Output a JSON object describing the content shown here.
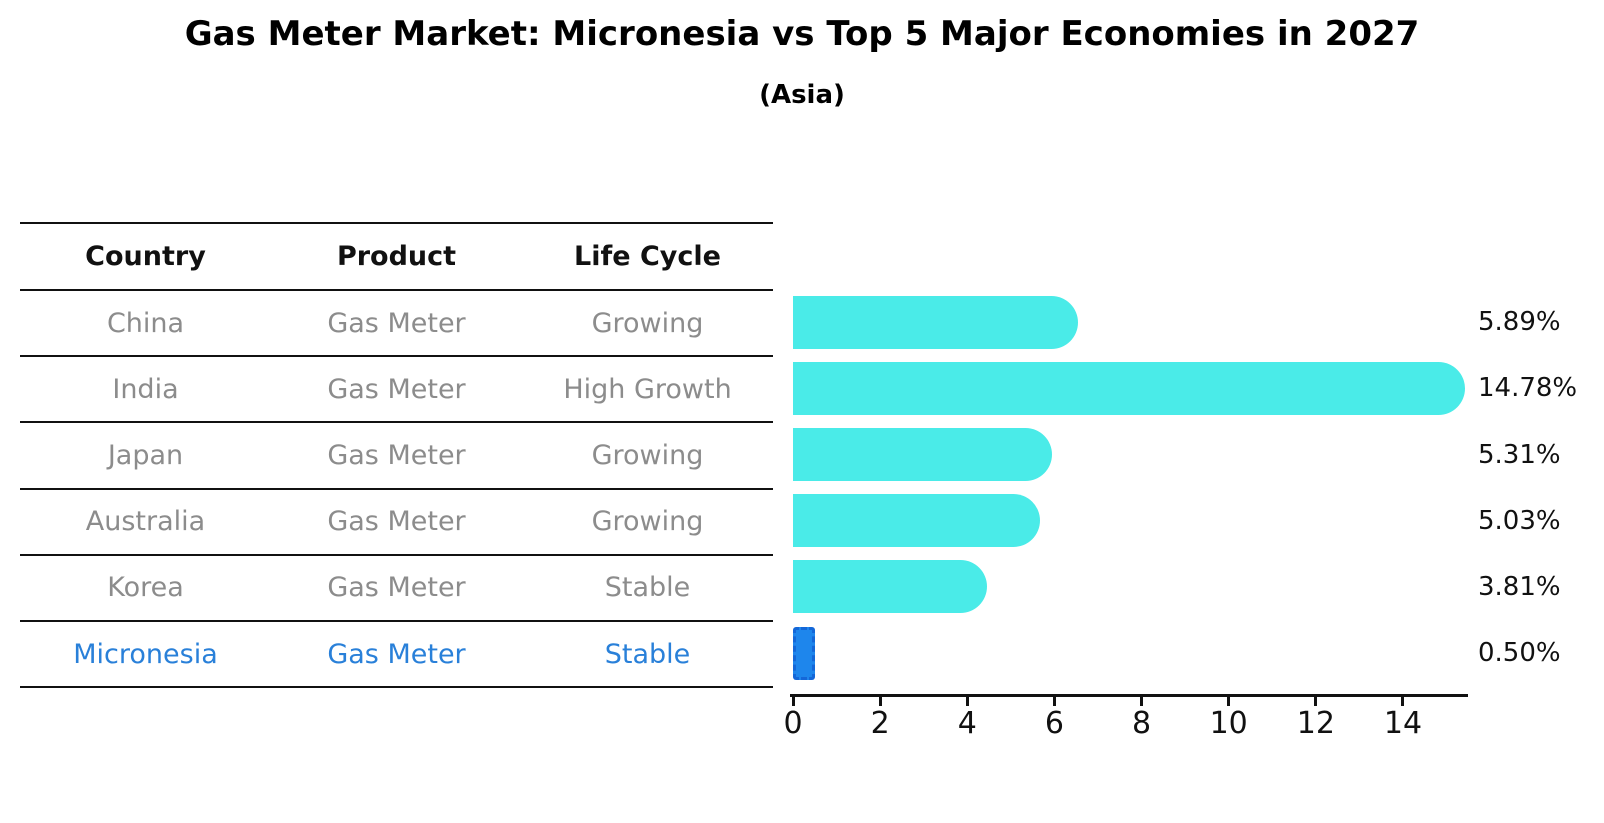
{
  "title": "Gas Meter Market: Micronesia vs Top 5 Major Economies in 2027",
  "subtitle": "(Asia)",
  "table": {
    "headers": [
      "Country",
      "Product",
      "Life Cycle"
    ],
    "rows": [
      [
        "China",
        "Gas Meter",
        "Growing"
      ],
      [
        "India",
        "Gas Meter",
        "High Growth"
      ],
      [
        "Japan",
        "Gas Meter",
        "Growing"
      ],
      [
        "Australia",
        "Gas Meter",
        "Growing"
      ],
      [
        "Korea",
        "Gas Meter",
        "Stable"
      ],
      [
        "Micronesia",
        "Gas Meter",
        "Stable"
      ]
    ],
    "highlight_row": "Micronesia"
  },
  "chart_data": {
    "type": "bar",
    "orientation": "horizontal",
    "title": "Gas Meter Market: Micronesia vs Top 5 Major Economies in 2027",
    "subtitle": "(Asia)",
    "categories": [
      "China",
      "India",
      "Japan",
      "Australia",
      "Korea",
      "Micronesia"
    ],
    "values": [
      5.89,
      14.78,
      5.31,
      5.03,
      3.81,
      0.5
    ],
    "value_labels": [
      "5.89%",
      "14.78%",
      "5.31%",
      "5.03%",
      "3.81%",
      "0.50%"
    ],
    "xticks": [
      "0",
      "2",
      "4",
      "6",
      "8",
      "10",
      "12",
      "14"
    ],
    "xtick_values": [
      0,
      2,
      4,
      6,
      8,
      10,
      12,
      14
    ],
    "xlim": [
      0,
      15.5
    ],
    "grid": false,
    "legend": false,
    "bar_color": "#4AEBE8",
    "highlight_index": 5,
    "highlight_bar_color": "#1E86EC",
    "highlight_border_color": "#1467D8",
    "highlight_text_color": "#2980D9",
    "row_text_color": "#8C8C8C",
    "header_text_color": "#111111"
  }
}
